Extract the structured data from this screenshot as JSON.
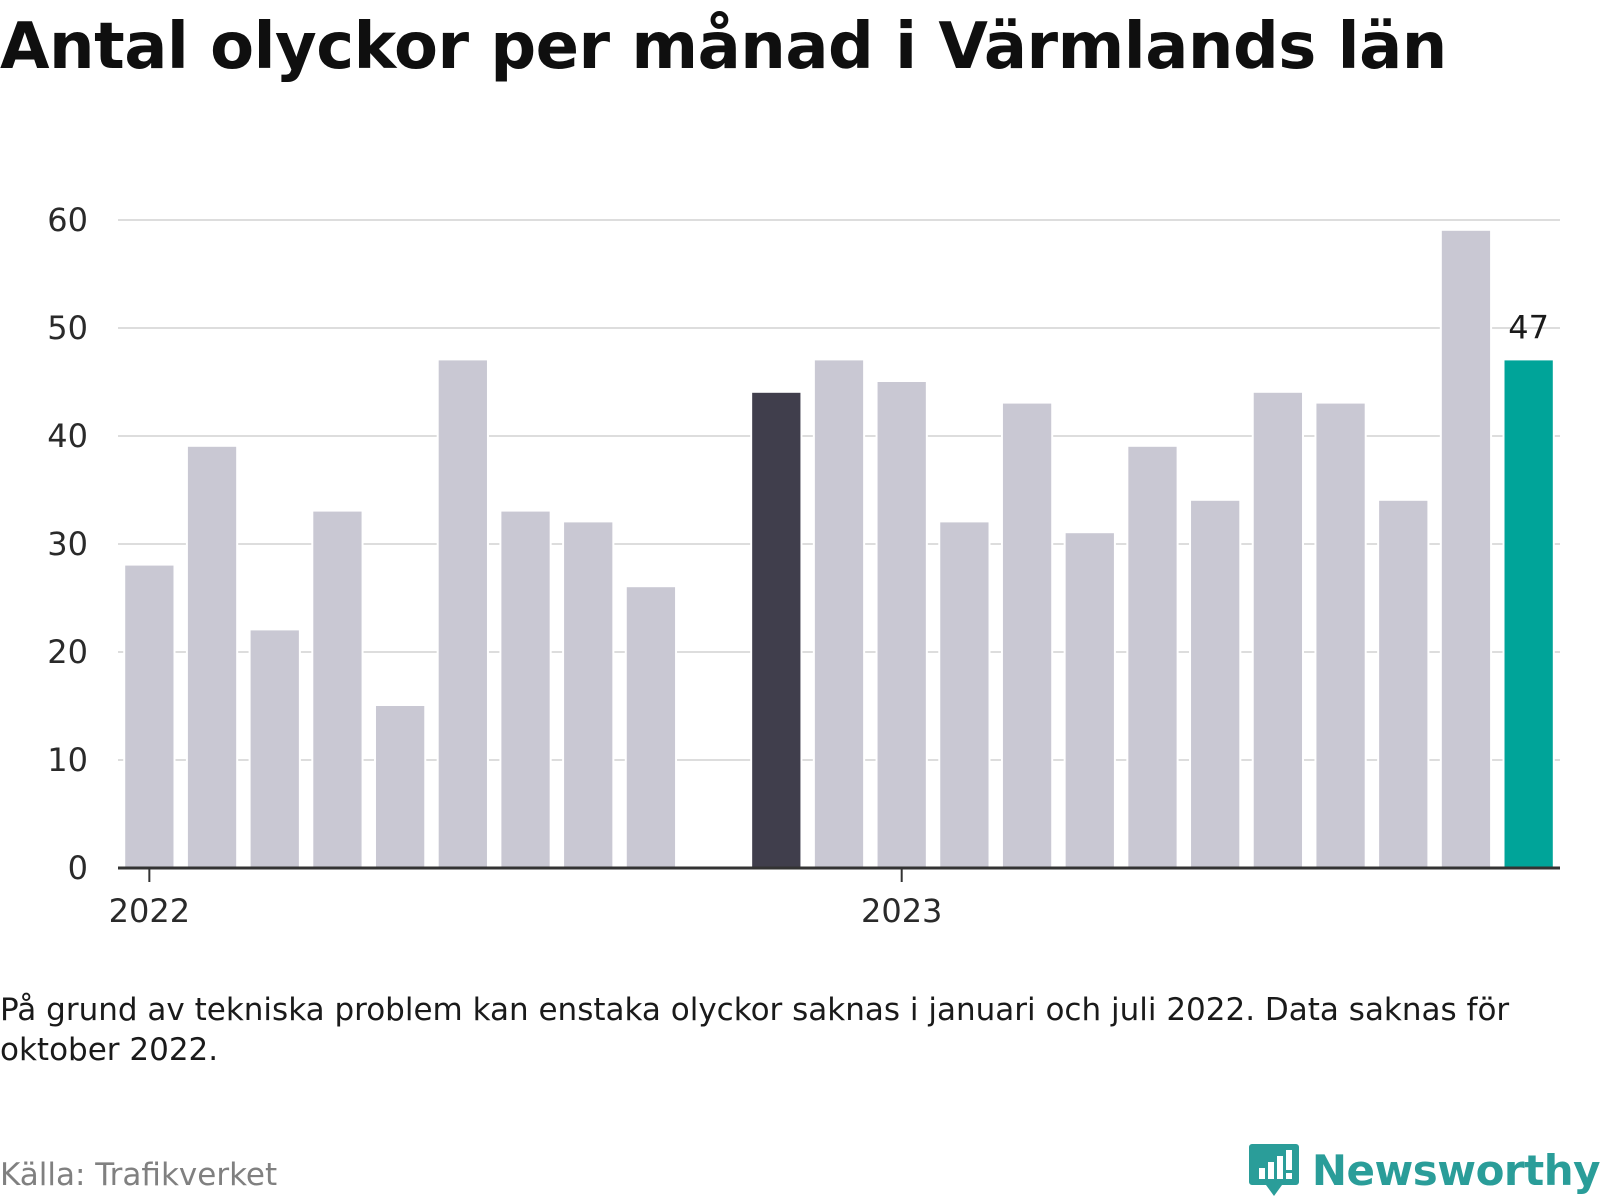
{
  "title": "Antal olyckor per månad i Värmlands län",
  "note": "På grund av tekniska problem kan enstaka olyckor saknas i januari och juli 2022. Data saknas för oktober 2022.",
  "source": "Källa: Trafikverket",
  "brand": "Newsworthy",
  "colors": {
    "bar": "#c9c8d3",
    "highlight_dark": "#403e4c",
    "highlight_accent": "#00a499",
    "grid": "#dddddd",
    "axis": "#333333",
    "brand": "#2a9d99"
  },
  "chart_data": {
    "type": "bar",
    "categories": [
      "2022-01",
      "2022-02",
      "2022-03",
      "2022-04",
      "2022-05",
      "2022-06",
      "2022-07",
      "2022-08",
      "2022-09",
      "2022-10",
      "2022-11",
      "2022-12",
      "2023-01",
      "2023-02",
      "2023-03",
      "2023-04",
      "2023-05",
      "2023-06",
      "2023-07",
      "2023-08",
      "2023-09",
      "2023-10",
      "2023-11"
    ],
    "values": [
      28,
      39,
      22,
      33,
      15,
      47,
      33,
      32,
      26,
      null,
      44,
      47,
      45,
      32,
      43,
      31,
      39,
      34,
      44,
      43,
      34,
      59,
      47
    ],
    "ylim": [
      0,
      60
    ],
    "y_ticks": [
      0,
      10,
      20,
      30,
      40,
      50,
      60
    ],
    "x_ticks": [
      {
        "at": "2022-01",
        "label": "2022"
      },
      {
        "at": "2023-01",
        "label": "2023"
      }
    ],
    "highlight_dark": "2022-11",
    "highlight_accent": "2023-11",
    "annotations": [
      {
        "at": "2023-11",
        "text": "47"
      }
    ],
    "grid": true,
    "legend": "none"
  }
}
